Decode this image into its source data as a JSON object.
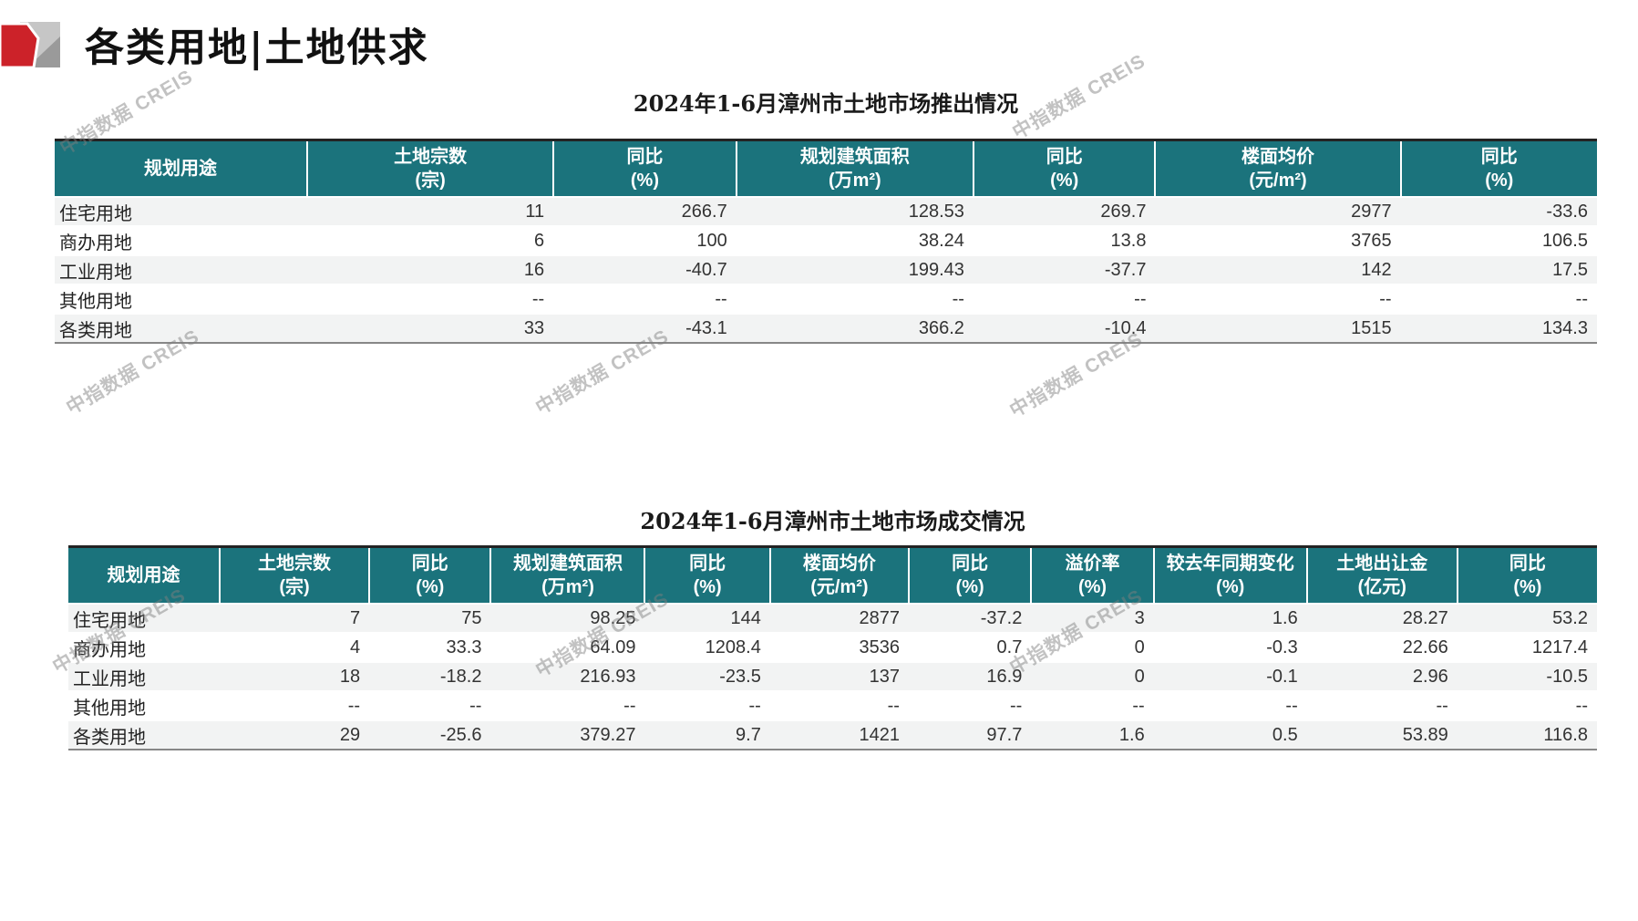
{
  "page": {
    "title": "各类用地|土地供求",
    "watermark": "中指数据 CREIS"
  },
  "colors": {
    "header_bg": "#1b737c",
    "row_alt_bg": "#f2f3f3",
    "logo_red": "#cc2229",
    "logo_light_gray": "#c6c6c6",
    "logo_dark_gray": "#9a9a9a",
    "watermark_gray": "#808080"
  },
  "table1": {
    "title": "2024年1-6月漳州市土地市场推出情况",
    "headers": [
      [
        "规划用途",
        ""
      ],
      [
        "土地宗数",
        "(宗)"
      ],
      [
        "同比",
        "(%)"
      ],
      [
        "规划建筑面积",
        "(万m²)"
      ],
      [
        "同比",
        "(%)"
      ],
      [
        "楼面均价",
        "(元/m²)"
      ],
      [
        "同比",
        "(%)"
      ]
    ],
    "rows": [
      [
        "住宅用地",
        "11",
        "266.7",
        "128.53",
        "269.7",
        "2977",
        "-33.6"
      ],
      [
        "商办用地",
        "6",
        "100",
        "38.24",
        "13.8",
        "3765",
        "106.5"
      ],
      [
        "工业用地",
        "16",
        "-40.7",
        "199.43",
        "-37.7",
        "142",
        "17.5"
      ],
      [
        "其他用地",
        "--",
        "--",
        "--",
        "--",
        "--",
        "--"
      ],
      [
        "各类用地",
        "33",
        "-43.1",
        "366.2",
        "-10.4",
        "1515",
        "134.3"
      ]
    ]
  },
  "table2": {
    "title": "2024年1-6月漳州市土地市场成交情况",
    "headers": [
      [
        "规划用途",
        ""
      ],
      [
        "土地宗数",
        "(宗)"
      ],
      [
        "同比",
        "(%)"
      ],
      [
        "规划建筑面积",
        "(万m²)"
      ],
      [
        "同比",
        "(%)"
      ],
      [
        "楼面均价",
        "(元/m²)"
      ],
      [
        "同比",
        "(%)"
      ],
      [
        "溢价率",
        "(%)"
      ],
      [
        "较去年同期变化",
        "(%)"
      ],
      [
        "土地出让金",
        "(亿元)"
      ],
      [
        "同比",
        "(%)"
      ]
    ],
    "rows": [
      [
        "住宅用地",
        "7",
        "75",
        "98.25",
        "144",
        "2877",
        "-37.2",
        "3",
        "1.6",
        "28.27",
        "53.2"
      ],
      [
        "商办用地",
        "4",
        "33.3",
        "64.09",
        "1208.4",
        "3536",
        "0.7",
        "0",
        "-0.3",
        "22.66",
        "1217.4"
      ],
      [
        "工业用地",
        "18",
        "-18.2",
        "216.93",
        "-23.5",
        "137",
        "16.9",
        "0",
        "-0.1",
        "2.96",
        "-10.5"
      ],
      [
        "其他用地",
        "--",
        "--",
        "--",
        "--",
        "--",
        "--",
        "--",
        "--",
        "--",
        "--"
      ],
      [
        "各类用地",
        "29",
        "-25.6",
        "379.27",
        "9.7",
        "1421",
        "97.7",
        "1.6",
        "0.5",
        "53.89",
        "116.8"
      ]
    ]
  }
}
